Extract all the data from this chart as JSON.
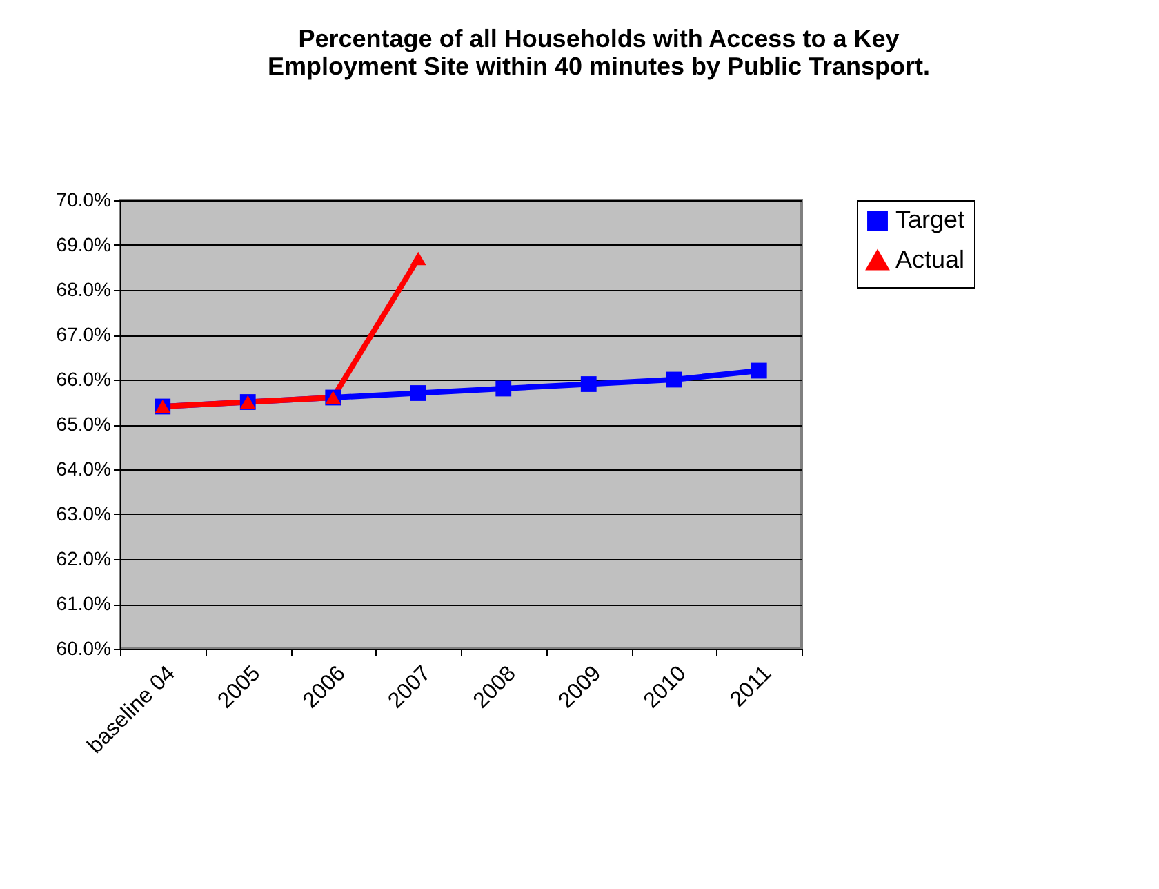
{
  "chart_data": {
    "type": "line",
    "title": [
      "Percentage of all Households with Access to a Key",
      "Employment Site within 40 minutes by Public Transport."
    ],
    "categories": [
      "baseline 04",
      "2005",
      "2006",
      "2007",
      "2008",
      "2009",
      "2010",
      "2011"
    ],
    "series": [
      {
        "name": "Target",
        "color": "#0000ff",
        "marker": "square",
        "values": [
          65.4,
          65.5,
          65.6,
          65.7,
          65.8,
          65.9,
          66.0,
          66.2
        ]
      },
      {
        "name": "Actual",
        "color": "#ff0000",
        "marker": "triangle",
        "values": [
          65.4,
          65.5,
          65.6,
          68.7,
          null,
          null,
          null,
          null
        ]
      }
    ],
    "ylim": [
      60,
      70
    ],
    "yticks": [
      {
        "value": 60,
        "label": "60.0%"
      },
      {
        "value": 61,
        "label": "61.0%"
      },
      {
        "value": 62,
        "label": "62.0%"
      },
      {
        "value": 63,
        "label": "63.0%"
      },
      {
        "value": 64,
        "label": "64.0%"
      },
      {
        "value": 65,
        "label": "65.0%"
      },
      {
        "value": 66,
        "label": "66.0%"
      },
      {
        "value": 67,
        "label": "67.0%"
      },
      {
        "value": 68,
        "label": "68.0%"
      },
      {
        "value": 69,
        "label": "69.0%"
      },
      {
        "value": 70,
        "label": "70.0%"
      }
    ],
    "grid": "y",
    "legend": "right",
    "line_style": "solid"
  }
}
